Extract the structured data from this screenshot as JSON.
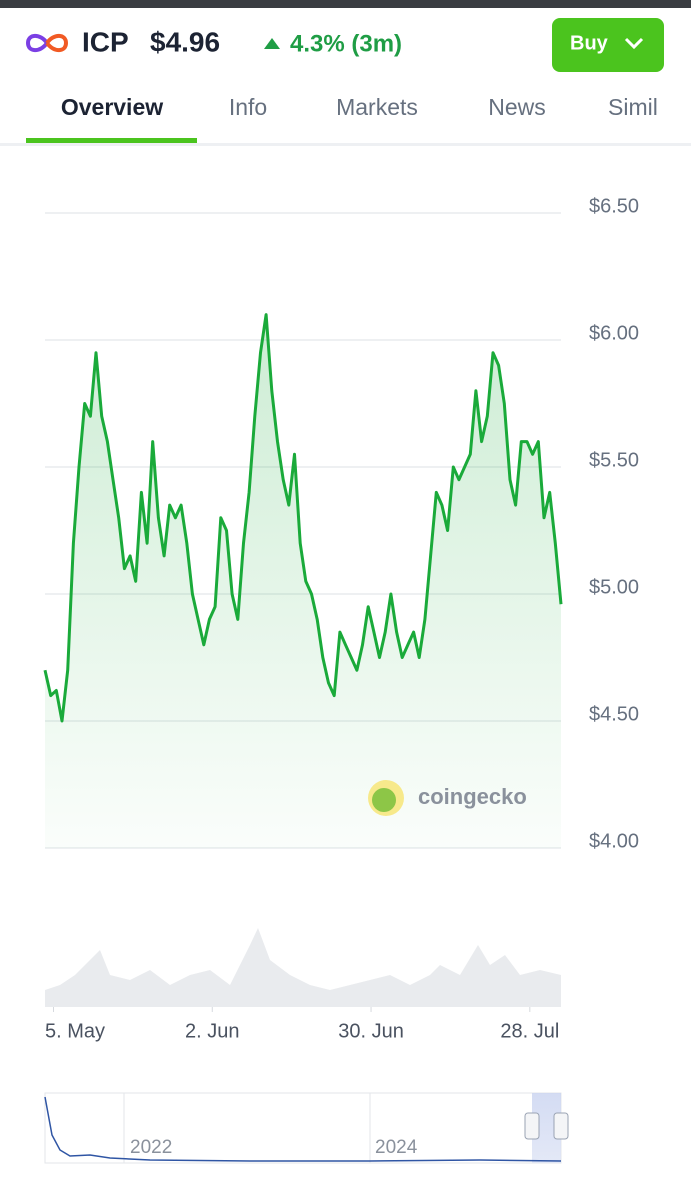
{
  "header": {
    "symbol": "ICP",
    "price": "$4.96",
    "change": "4.3% (3m)",
    "button": "Buy"
  },
  "tabs": [
    "Overview",
    "Info",
    "Markets",
    "News",
    "Simil"
  ],
  "watermark": "coingecko",
  "chart_data": {
    "type": "line",
    "series": [
      {
        "name": "ICP",
        "color": "#1aaa3a",
        "values": [
          4.7,
          4.6,
          4.62,
          4.5,
          4.7,
          5.2,
          5.5,
          5.75,
          5.7,
          5.95,
          5.7,
          5.6,
          5.45,
          5.3,
          5.1,
          5.15,
          5.05,
          5.4,
          5.2,
          5.6,
          5.3,
          5.15,
          5.35,
          5.3,
          5.35,
          5.2,
          5.0,
          4.9,
          4.8,
          4.9,
          4.95,
          5.3,
          5.25,
          5.0,
          4.9,
          5.2,
          5.4,
          5.7,
          5.95,
          6.1,
          5.8,
          5.6,
          5.45,
          5.35,
          5.55,
          5.2,
          5.05,
          5.0,
          4.9,
          4.75,
          4.65,
          4.6,
          4.85,
          4.8,
          4.75,
          4.7,
          4.8,
          4.95,
          4.85,
          4.75,
          4.85,
          5.0,
          4.85,
          4.75,
          4.8,
          4.85,
          4.75,
          4.9,
          5.15,
          5.4,
          5.35,
          5.25,
          5.5,
          5.45,
          5.5,
          5.55,
          5.8,
          5.6,
          5.7,
          5.95,
          5.9,
          5.75,
          5.45,
          5.35,
          5.6,
          5.6,
          5.55,
          5.6,
          5.3,
          5.4,
          5.2,
          4.96
        ]
      }
    ],
    "xlim": [
      0,
      91
    ],
    "xticks": [
      {
        "value": 1.5,
        "label": "5. May"
      },
      {
        "value": 29.5,
        "label": "2. Jun"
      },
      {
        "value": 57.5,
        "label": "30. Jun"
      },
      {
        "value": 85.5,
        "label": "28. Jul"
      }
    ],
    "ylim": [
      4,
      6.5
    ],
    "yticks": [
      {
        "value": 4,
        "label": "$4.00"
      },
      {
        "value": 4.5,
        "label": "$4.50"
      },
      {
        "value": 5,
        "label": "$5.00"
      },
      {
        "value": 5.5,
        "label": "$5.50"
      },
      {
        "value": 6,
        "label": "$6.00"
      },
      {
        "value": 6.5,
        "label": "$6.50"
      }
    ],
    "grid": true,
    "navigator_labels": [
      "2022",
      "2024"
    ]
  }
}
